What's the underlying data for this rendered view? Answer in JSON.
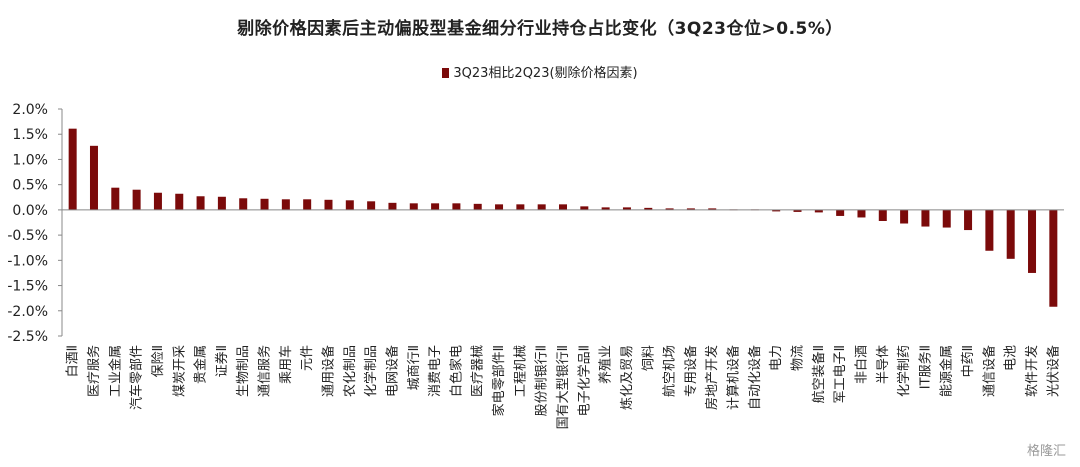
{
  "title": "剔除价格因素后主动偏股型基金细分行业持仓占比变化（3Q23仓位>0.5%）",
  "legend_label": "3Q23相比2Q23(剔除价格因素)",
  "watermark": "格隆汇",
  "colors": {
    "bar": "#7B0A0A"
  },
  "chart_data": {
    "type": "bar",
    "title": "剔除价格因素后主动偏股型基金细分行业持仓占比变化（3Q23仓位>0.5%）",
    "ylim": [
      -2.5,
      2.0
    ],
    "yticks": [
      "2.0%",
      "1.5%",
      "1.0%",
      "0.5%",
      "0.0%",
      "-0.5%",
      "-1.0%",
      "-1.5%",
      "-2.0%",
      "-2.5%"
    ],
    "categories": [
      "白酒Ⅱ",
      "医疗服务",
      "工业金属",
      "汽车零部件",
      "保险Ⅱ",
      "煤炭开采",
      "贵金属",
      "证券Ⅱ",
      "生物制品",
      "通信服务",
      "乘用车",
      "元件",
      "通用设备",
      "农化制品",
      "化学制品",
      "电网设备",
      "城商行Ⅱ",
      "消费电子",
      "白色家电",
      "医疗器械",
      "家电零部件Ⅱ",
      "工程机械",
      "股份制银行Ⅱ",
      "国有大型银行Ⅱ",
      "电子化学品Ⅱ",
      "养殖业",
      "炼化及贸易",
      "饲料",
      "航空机场",
      "专用设备",
      "房地产开发",
      "计算机设备",
      "自动化设备",
      "电力",
      "物流",
      "航空装备Ⅱ",
      "军工电子Ⅱ",
      "非白酒",
      "半导体",
      "化学制药",
      "IT服务Ⅱ",
      "能源金属",
      "中药Ⅱ",
      "通信设备",
      "电池",
      "软件开发",
      "光伏设备"
    ],
    "series": [
      {
        "name": "3Q23相比2Q23(剔除价格因素)",
        "values": [
          1.61,
          1.27,
          0.44,
          0.4,
          0.34,
          0.32,
          0.27,
          0.26,
          0.23,
          0.22,
          0.21,
          0.21,
          0.2,
          0.19,
          0.17,
          0.14,
          0.13,
          0.13,
          0.13,
          0.12,
          0.11,
          0.11,
          0.11,
          0.11,
          0.07,
          0.05,
          0.05,
          0.04,
          0.03,
          0.03,
          0.03,
          0.01,
          0.01,
          -0.03,
          -0.04,
          -0.05,
          -0.12,
          -0.15,
          -0.22,
          -0.27,
          -0.33,
          -0.35,
          -0.4,
          -0.81,
          -0.97,
          -1.25,
          -1.92
        ]
      }
    ]
  }
}
